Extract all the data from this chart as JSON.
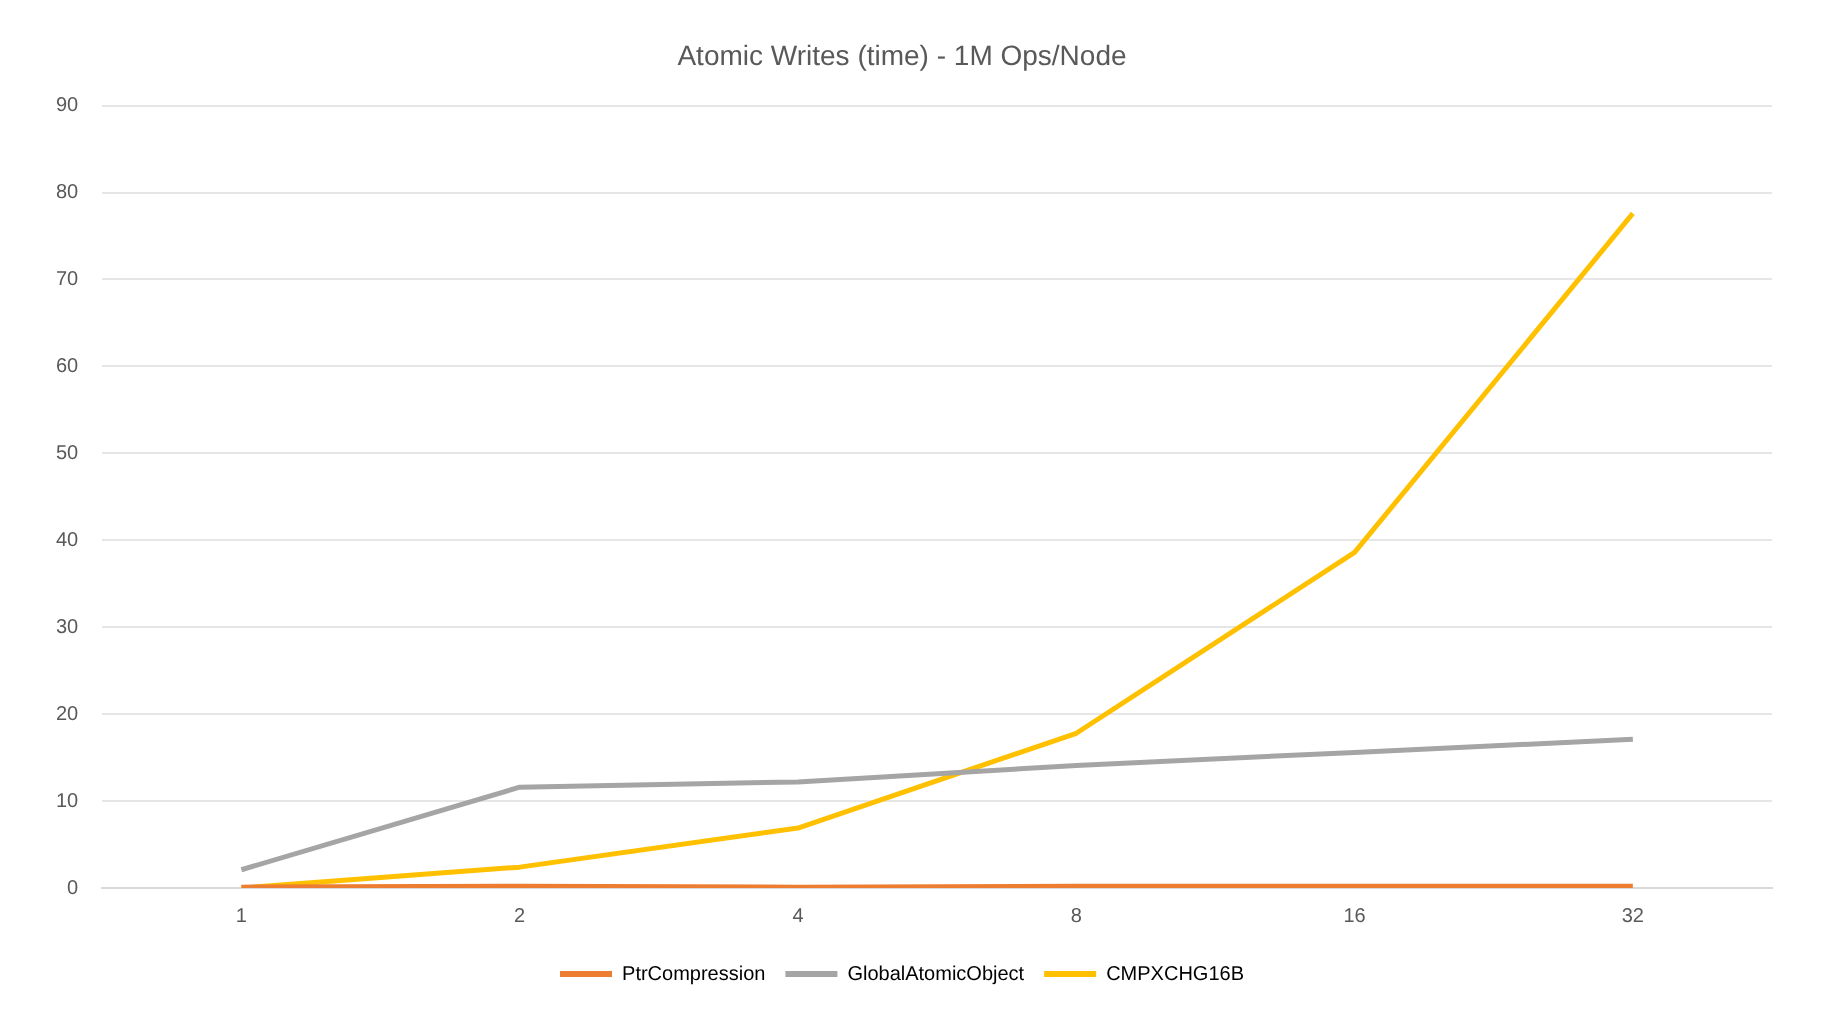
{
  "chart_data": {
    "type": "line",
    "title": "Atomic Writes (time) - 1M Ops/Node",
    "categories": [
      "1",
      "2",
      "4",
      "8",
      "16",
      "32"
    ],
    "series": [
      {
        "name": "PtrCompression",
        "color": "#ed7d31",
        "values": [
          0.1,
          0.2,
          0.1,
          0.2,
          0.2,
          0.2
        ]
      },
      {
        "name": "GlobalAtomicObject",
        "color": "#a5a5a5",
        "values": [
          2.1,
          11.6,
          12.2,
          14.1,
          15.6,
          17.1
        ]
      },
      {
        "name": "CMPXCHG16B",
        "color": "#ffc000",
        "values": [
          0,
          2.4,
          6.9,
          17.8,
          38.6,
          77.6
        ]
      }
    ],
    "ylim": [
      0,
      90
    ],
    "yticks": [
      0,
      10,
      20,
      30,
      40,
      50,
      60,
      70,
      80,
      90
    ],
    "grid": "y",
    "legend": "bottom",
    "marker": "none",
    "line_style": "solid"
  }
}
